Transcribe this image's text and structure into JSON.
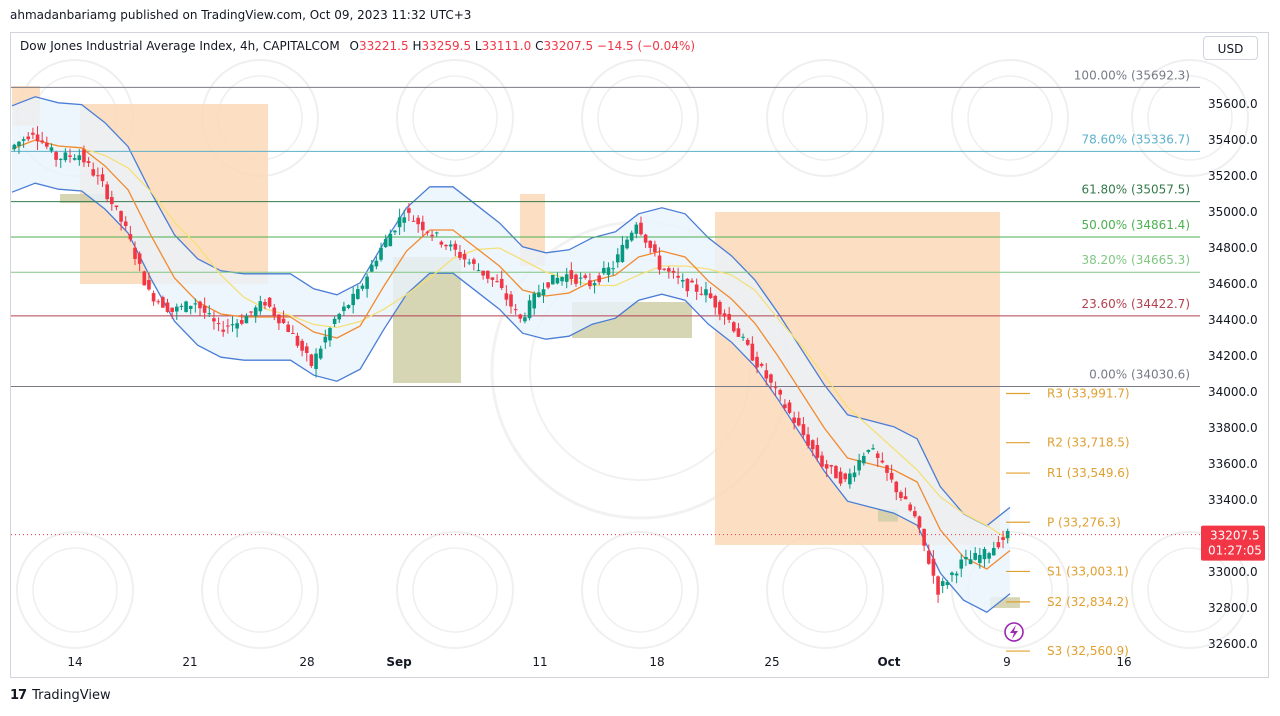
{
  "publisher": {
    "text": "ahmadanbariamg published on TradingView.com, Oct 09, 2023 11:32 UTC+3"
  },
  "legend": {
    "symbol": "Dow Jones Industrial Average Index, 4h, CAPITALCOM",
    "o_label": "O",
    "o": "33221.5",
    "h_label": "H",
    "h": "33259.5",
    "l_label": "L",
    "l": "33111.0",
    "c_label": "C",
    "c": "33207.5",
    "change": "−14.5 (−0.04%)"
  },
  "currency_button": {
    "label": "USD"
  },
  "price_tag": {
    "price": "33207.5",
    "countdown": "01:27:05"
  },
  "footer": {
    "logo": "17",
    "brand": "TradingView"
  },
  "colors": {
    "up": "#089981",
    "down": "#f23645",
    "bb": "#4a7dd6",
    "bb_fill": "#e8f2fc",
    "ema_fast": "#f28b30",
    "ema_slow": "#f5e07a",
    "supply": "#fcd9b8",
    "demand": "#cfcfa8",
    "pivot": "#e0a030",
    "fib_100": "#787b86",
    "fib_786": "#5bb1c9",
    "fib_618": "#357a4a",
    "fib_50": "#4caf50",
    "fib_382": "#81c784",
    "fib_236": "#b2424f",
    "fib_0": "#787b86"
  },
  "chart_data": {
    "type": "candlestick",
    "price_axis": {
      "min": 32550,
      "max": 35800,
      "ticks": [
        35600.0,
        35400.0,
        35200.0,
        35000.0,
        34800.0,
        34600.0,
        34400.0,
        34200.0,
        34000.0,
        33800.0,
        33600.0,
        33400.0,
        33200.0,
        33000.0,
        32800.0,
        32600.0
      ]
    },
    "time_axis": {
      "labels": [
        {
          "text": "14",
          "bold": false
        },
        {
          "text": "21",
          "bold": false
        },
        {
          "text": "28",
          "bold": false
        },
        {
          "text": "Sep",
          "bold": true
        },
        {
          "text": "11",
          "bold": false
        },
        {
          "text": "18",
          "bold": false
        },
        {
          "text": "25",
          "bold": false
        },
        {
          "text": "Oct",
          "bold": true
        },
        {
          "text": "9",
          "bold": false
        },
        {
          "text": "16",
          "bold": false
        }
      ]
    },
    "fib_levels": [
      {
        "label": "100.00%",
        "price_text": "(35692.3)",
        "value": 35692.3,
        "color": "#787b86"
      },
      {
        "label": "78.60%",
        "price_text": "(35336.7)",
        "value": 35336.7,
        "color": "#5bb1c9"
      },
      {
        "label": "61.80%",
        "price_text": "(35057.5)",
        "value": 35057.5,
        "color": "#357a4a"
      },
      {
        "label": "50.00%",
        "price_text": "(34861.4)",
        "value": 34861.4,
        "color": "#4caf50"
      },
      {
        "label": "38.20%",
        "price_text": "(34665.3)",
        "value": 34665.3,
        "color": "#81c784"
      },
      {
        "label": "23.60%",
        "price_text": "(34422.7)",
        "value": 34422.7,
        "color": "#b2424f"
      },
      {
        "label": "0.00%",
        "price_text": "(34030.6)",
        "value": 34030.6,
        "color": "#787b86"
      }
    ],
    "pivots": [
      {
        "label": "R3",
        "price_text": "(33,991.7)",
        "value": 33991.7
      },
      {
        "label": "R2",
        "price_text": "(33,718.5)",
        "value": 33718.5
      },
      {
        "label": "R1",
        "price_text": "(33,549.6)",
        "value": 33549.6
      },
      {
        "label": "P",
        "price_text": "(33,276.3)",
        "value": 33276.3
      },
      {
        "label": "S1",
        "price_text": "(33,003.1)",
        "value": 33003.1
      },
      {
        "label": "S2",
        "price_text": "(32,834.2)",
        "value": 32834.2
      },
      {
        "label": "S3",
        "price_text": "(32,560.9)",
        "value": 32560.9
      }
    ],
    "last_price": 33207.5,
    "approx_close_path": [
      {
        "date": "Aug 09",
        "price": 35350
      },
      {
        "date": "Aug 10",
        "price": 35450
      },
      {
        "date": "Aug 11",
        "price": 35300
      },
      {
        "date": "Aug 14",
        "price": 35320
      },
      {
        "date": "Aug 15",
        "price": 35150
      },
      {
        "date": "Aug 16",
        "price": 34900
      },
      {
        "date": "Aug 17",
        "price": 34550
      },
      {
        "date": "Aug 18",
        "price": 34450
      },
      {
        "date": "Aug 21",
        "price": 34500
      },
      {
        "date": "Aug 22",
        "price": 34350
      },
      {
        "date": "Aug 23",
        "price": 34400
      },
      {
        "date": "Aug 24",
        "price": 34500
      },
      {
        "date": "Aug 25",
        "price": 34350
      },
      {
        "date": "Aug 28",
        "price": 34150
      },
      {
        "date": "Aug 29",
        "price": 34400
      },
      {
        "date": "Aug 30",
        "price": 34550
      },
      {
        "date": "Aug 31",
        "price": 34800
      },
      {
        "date": "Sep 01",
        "price": 35000
      },
      {
        "date": "Sep 04",
        "price": 34900
      },
      {
        "date": "Sep 05",
        "price": 34800
      },
      {
        "date": "Sep 06",
        "price": 34700
      },
      {
        "date": "Sep 07",
        "price": 34600
      },
      {
        "date": "Sep 08",
        "price": 34400
      },
      {
        "date": "Sep 11",
        "price": 34600
      },
      {
        "date": "Sep 12",
        "price": 34650
      },
      {
        "date": "Sep 13",
        "price": 34600
      },
      {
        "date": "Sep 14",
        "price": 34700
      },
      {
        "date": "Sep 15",
        "price": 34950
      },
      {
        "date": "Sep 18",
        "price": 34700
      },
      {
        "date": "Sep 19",
        "price": 34600
      },
      {
        "date": "Sep 20",
        "price": 34550
      },
      {
        "date": "Sep 21",
        "price": 34400
      },
      {
        "date": "Sep 22",
        "price": 34200
      },
      {
        "date": "Sep 25",
        "price": 34000
      },
      {
        "date": "Sep 26",
        "price": 33800
      },
      {
        "date": "Sep 27",
        "price": 33600
      },
      {
        "date": "Sep 28",
        "price": 33500
      },
      {
        "date": "Sep 29",
        "price": 33700
      },
      {
        "date": "Oct 02",
        "price": 33500
      },
      {
        "date": "Oct 03",
        "price": 33300
      },
      {
        "date": "Oct 04",
        "price": 32900
      },
      {
        "date": "Oct 05",
        "price": 33050
      },
      {
        "date": "Oct 06",
        "price": 33100
      },
      {
        "date": "Oct 09",
        "price": 33207.5
      }
    ]
  }
}
